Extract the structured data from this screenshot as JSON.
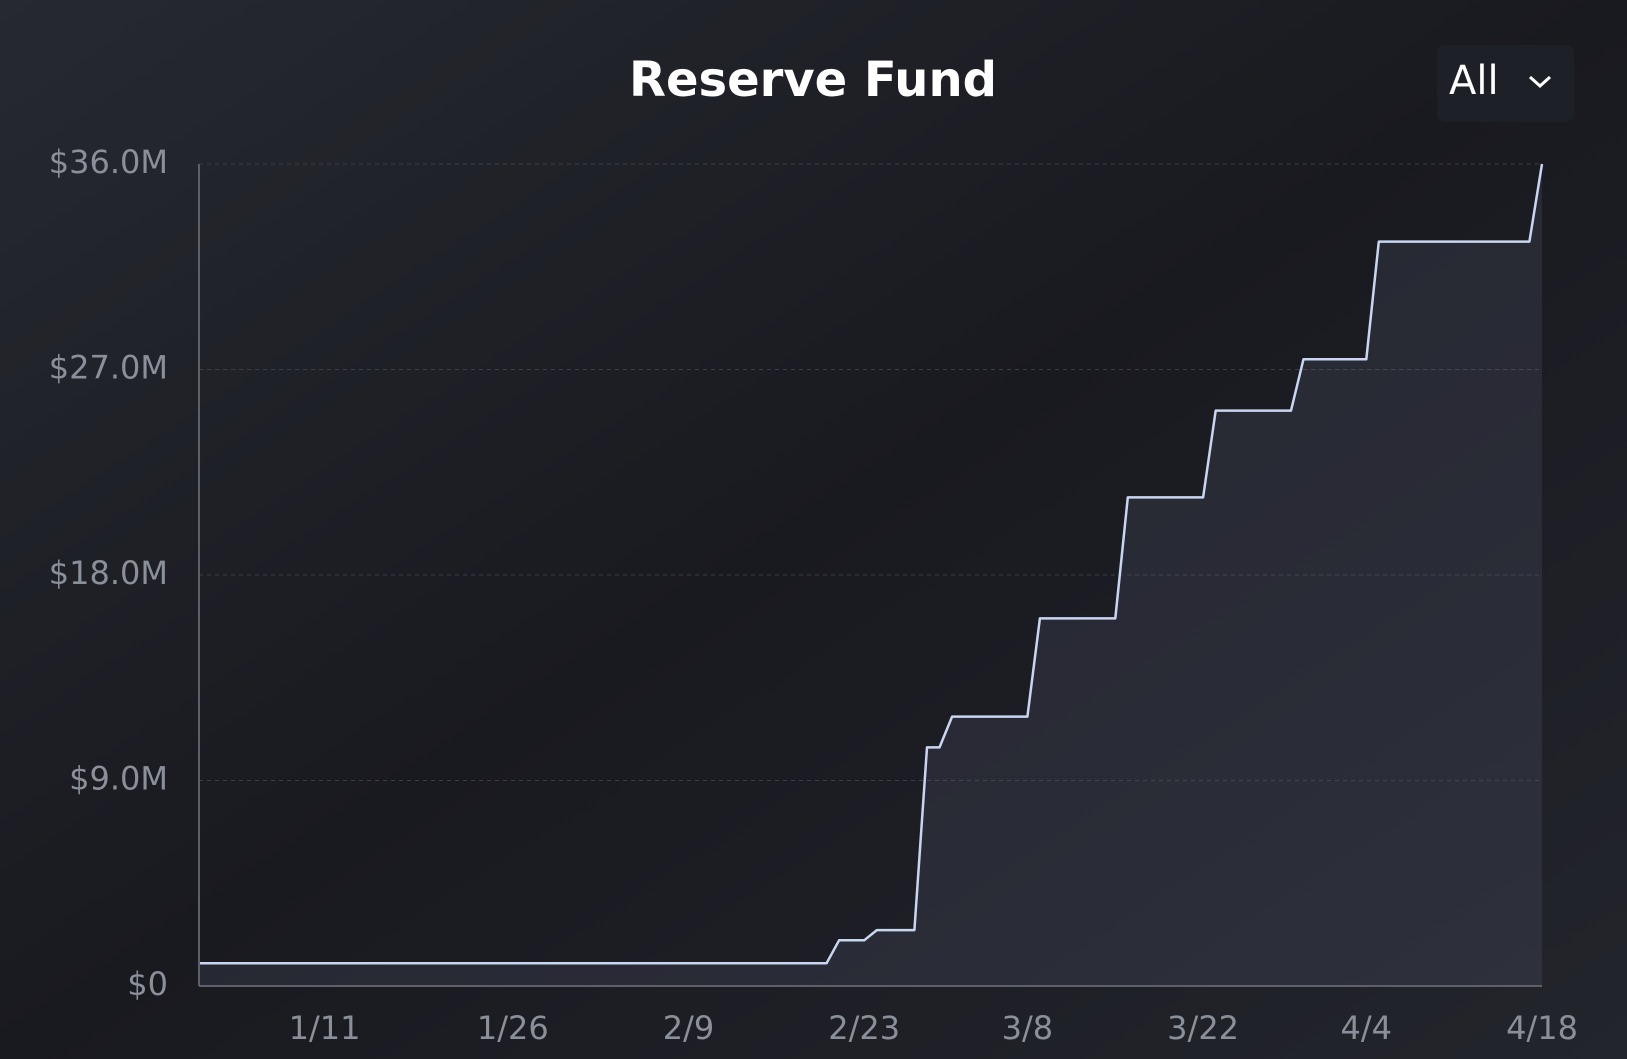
{
  "dropdown": "All",
  "chart_data": {
    "type": "line",
    "title": "Reserve Fund",
    "step": true,
    "x": [
      "1/1",
      "2/20",
      "2/21",
      "2/23",
      "2/24",
      "2/27",
      "2/28",
      "3/1",
      "3/2",
      "3/8",
      "3/9",
      "3/15",
      "3/16",
      "3/22",
      "3/23",
      "3/29",
      "3/30",
      "4/4",
      "4/5",
      "4/17",
      "4/18"
    ],
    "series": [
      {
        "name": "Reserve Fund",
        "color": "#c9d6f2",
        "values": [
          1000000,
          1000000,
          2000000,
          2000000,
          2450000,
          2450000,
          10450000,
          10450000,
          11800000,
          11800000,
          16100000,
          16100000,
          21400000,
          21400000,
          25200000,
          25200000,
          27450000,
          27450000,
          32600000,
          32600000,
          36000000
        ]
      }
    ],
    "xlim": [
      "1/1",
      "4/18"
    ],
    "xticks": [
      "1/11",
      "1/26",
      "2/9",
      "2/23",
      "3/8",
      "3/22",
      "4/4",
      "4/18"
    ],
    "ylim": [
      0,
      36000000
    ],
    "yticks": [
      {
        "value": 0,
        "label": "$0"
      },
      {
        "value": 9000000,
        "label": "$9.0M"
      },
      {
        "value": 18000000,
        "label": "$18.0M"
      },
      {
        "value": 27000000,
        "label": "$27.0M"
      },
      {
        "value": 36000000,
        "label": "$36.0M"
      }
    ],
    "grid": true
  }
}
